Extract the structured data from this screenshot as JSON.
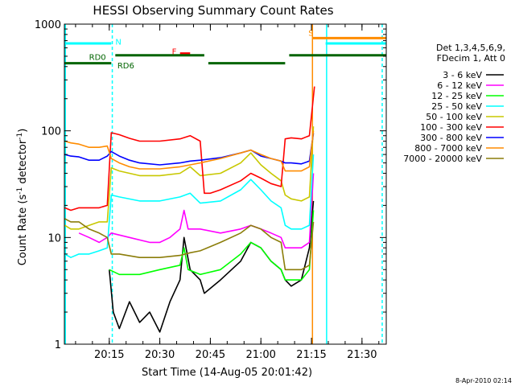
{
  "chart_data": {
    "type": "line",
    "title": "HESSI Observing Summary Count Rates",
    "xlabel": "Start Time (14-Aug-05 20:01:42)",
    "ylabel": "Count Rate (s^-1 detector^-1)",
    "ylabel_prefix": "Count Rate (s",
    "ylabel_mid": " detector",
    "ylabel_suffix": ")",
    "ylabel_sup": "-1",
    "y_scale": "log",
    "ylim": [
      1,
      1000
    ],
    "xlim": [
      20.028,
      21.62
    ],
    "x_ticks": [
      {
        "t": 20.25,
        "label": "20:15"
      },
      {
        "t": 20.5,
        "label": "20:30"
      },
      {
        "t": 20.75,
        "label": "20:45"
      },
      {
        "t": 21.0,
        "label": "21:00"
      },
      {
        "t": 21.25,
        "label": "21:15"
      },
      {
        "t": 21.5,
        "label": "21:30"
      }
    ],
    "y_ticks": [
      {
        "v": 1,
        "label": "1"
      },
      {
        "v": 10,
        "label": "10"
      },
      {
        "v": 100,
        "label": "100"
      },
      {
        "v": 1000,
        "label": "1000"
      }
    ],
    "legend_placement": "right",
    "legend_header": [
      "Det 1,3,4,5,6,9,",
      "FDecim 1, Att 0"
    ],
    "series": [
      {
        "name": "3 - 6 keV",
        "color": "#000000",
        "points": [
          [
            20.25,
            5
          ],
          [
            20.27,
            2
          ],
          [
            20.3,
            1.4
          ],
          [
            20.35,
            2.5
          ],
          [
            20.4,
            1.6
          ],
          [
            20.45,
            2
          ],
          [
            20.5,
            1.3
          ],
          [
            20.55,
            2.5
          ],
          [
            20.6,
            4
          ],
          [
            20.62,
            10
          ],
          [
            20.65,
            5
          ],
          [
            20.7,
            4
          ],
          [
            20.72,
            3
          ],
          [
            20.8,
            4
          ],
          [
            20.9,
            6
          ],
          [
            20.95,
            9
          ],
          [
            21.0,
            8
          ],
          [
            21.05,
            6
          ],
          [
            21.1,
            5
          ],
          [
            21.12,
            4
          ],
          [
            21.15,
            3.5
          ],
          [
            21.2,
            4
          ],
          [
            21.24,
            8
          ],
          [
            21.26,
            22
          ]
        ]
      },
      {
        "name": "6 - 12 keV",
        "color": "#ff00ff",
        "points": [
          [
            20.1,
            11
          ],
          [
            20.15,
            10
          ],
          [
            20.2,
            9
          ],
          [
            20.24,
            10
          ],
          [
            20.26,
            11
          ],
          [
            20.35,
            10
          ],
          [
            20.45,
            9
          ],
          [
            20.5,
            9
          ],
          [
            20.55,
            10
          ],
          [
            20.6,
            12
          ],
          [
            20.62,
            18
          ],
          [
            20.64,
            12
          ],
          [
            20.7,
            12
          ],
          [
            20.8,
            11
          ],
          [
            20.9,
            12
          ],
          [
            20.95,
            13
          ],
          [
            21.0,
            12
          ],
          [
            21.05,
            11
          ],
          [
            21.1,
            10
          ],
          [
            21.12,
            8
          ],
          [
            21.15,
            8
          ],
          [
            21.2,
            8
          ],
          [
            21.24,
            9
          ],
          [
            21.26,
            40
          ]
        ]
      },
      {
        "name": "12 - 25 keV",
        "color": "#00ff00",
        "points": [
          [
            20.25,
            5
          ],
          [
            20.3,
            4.5
          ],
          [
            20.4,
            4.5
          ],
          [
            20.5,
            5
          ],
          [
            20.6,
            5.5
          ],
          [
            20.62,
            8
          ],
          [
            20.64,
            5
          ],
          [
            20.7,
            4.5
          ],
          [
            20.8,
            5
          ],
          [
            20.9,
            7
          ],
          [
            20.95,
            9
          ],
          [
            21.0,
            8
          ],
          [
            21.05,
            6
          ],
          [
            21.1,
            5
          ],
          [
            21.12,
            4
          ],
          [
            21.15,
            4
          ],
          [
            21.2,
            4
          ],
          [
            21.24,
            5
          ],
          [
            21.26,
            18
          ]
        ]
      },
      {
        "name": "25 - 50 keV",
        "color": "#00ffff",
        "points": [
          [
            20.03,
            7
          ],
          [
            20.06,
            6.5
          ],
          [
            20.1,
            7
          ],
          [
            20.15,
            7
          ],
          [
            20.2,
            7.5
          ],
          [
            20.24,
            8
          ],
          [
            20.26,
            25
          ],
          [
            20.3,
            24
          ],
          [
            20.4,
            22
          ],
          [
            20.5,
            22
          ],
          [
            20.6,
            24
          ],
          [
            20.65,
            26
          ],
          [
            20.7,
            21
          ],
          [
            20.8,
            22
          ],
          [
            20.9,
            28
          ],
          [
            20.95,
            35
          ],
          [
            21.0,
            28
          ],
          [
            21.05,
            22
          ],
          [
            21.1,
            19
          ],
          [
            21.12,
            13
          ],
          [
            21.15,
            12
          ],
          [
            21.2,
            12
          ],
          [
            21.24,
            13
          ],
          [
            21.26,
            60
          ]
        ]
      },
      {
        "name": "50 - 100 keV",
        "color": "#c8c800",
        "points": [
          [
            20.03,
            13
          ],
          [
            20.06,
            12
          ],
          [
            20.1,
            12
          ],
          [
            20.15,
            13
          ],
          [
            20.2,
            14
          ],
          [
            20.24,
            14
          ],
          [
            20.26,
            45
          ],
          [
            20.3,
            42
          ],
          [
            20.4,
            38
          ],
          [
            20.5,
            38
          ],
          [
            20.6,
            40
          ],
          [
            20.65,
            46
          ],
          [
            20.7,
            38
          ],
          [
            20.8,
            40
          ],
          [
            20.9,
            50
          ],
          [
            20.95,
            62
          ],
          [
            21.0,
            48
          ],
          [
            21.05,
            40
          ],
          [
            21.1,
            34
          ],
          [
            21.12,
            25
          ],
          [
            21.15,
            23
          ],
          [
            21.2,
            22
          ],
          [
            21.24,
            24
          ],
          [
            21.26,
            110
          ]
        ]
      },
      {
        "name": "100 - 300 keV",
        "color": "#ff0000",
        "points": [
          [
            20.03,
            19
          ],
          [
            20.06,
            18
          ],
          [
            20.1,
            19
          ],
          [
            20.15,
            19
          ],
          [
            20.2,
            19
          ],
          [
            20.24,
            20
          ],
          [
            20.26,
            96
          ],
          [
            20.3,
            92
          ],
          [
            20.35,
            85
          ],
          [
            20.4,
            80
          ],
          [
            20.5,
            80
          ],
          [
            20.6,
            84
          ],
          [
            20.65,
            90
          ],
          [
            20.7,
            80
          ],
          [
            20.72,
            26
          ],
          [
            20.75,
            26
          ],
          [
            20.8,
            28
          ],
          [
            20.9,
            34
          ],
          [
            20.95,
            40
          ],
          [
            21.0,
            36
          ],
          [
            21.05,
            32
          ],
          [
            21.1,
            30
          ],
          [
            21.12,
            84
          ],
          [
            21.15,
            86
          ],
          [
            21.2,
            84
          ],
          [
            21.24,
            90
          ],
          [
            21.265,
            260
          ]
        ]
      },
      {
        "name": "300 - 800 keV",
        "color": "#0000ff",
        "points": [
          [
            20.03,
            60
          ],
          [
            20.06,
            58
          ],
          [
            20.1,
            57
          ],
          [
            20.15,
            53
          ],
          [
            20.2,
            53
          ],
          [
            20.24,
            58
          ],
          [
            20.26,
            64
          ],
          [
            20.3,
            58
          ],
          [
            20.35,
            53
          ],
          [
            20.4,
            50
          ],
          [
            20.5,
            48
          ],
          [
            20.6,
            50
          ],
          [
            20.65,
            52
          ],
          [
            20.7,
            53
          ],
          [
            20.8,
            56
          ],
          [
            20.9,
            62
          ],
          [
            20.95,
            66
          ],
          [
            21.0,
            58
          ],
          [
            21.05,
            55
          ],
          [
            21.1,
            52
          ],
          [
            21.12,
            50
          ],
          [
            21.15,
            50
          ],
          [
            21.2,
            49
          ],
          [
            21.24,
            52
          ],
          [
            21.26,
            95
          ]
        ]
      },
      {
        "name": "800 - 7000 keV",
        "color": "#ff8c00",
        "points": [
          [
            20.03,
            80
          ],
          [
            20.06,
            77
          ],
          [
            20.1,
            75
          ],
          [
            20.15,
            70
          ],
          [
            20.2,
            70
          ],
          [
            20.24,
            72
          ],
          [
            20.26,
            55
          ],
          [
            20.3,
            50
          ],
          [
            20.35,
            46
          ],
          [
            20.4,
            44
          ],
          [
            20.5,
            44
          ],
          [
            20.6,
            46
          ],
          [
            20.65,
            48
          ],
          [
            20.7,
            50
          ],
          [
            20.8,
            55
          ],
          [
            20.9,
            62
          ],
          [
            20.95,
            66
          ],
          [
            21.0,
            60
          ],
          [
            21.05,
            55
          ],
          [
            21.1,
            52
          ],
          [
            21.12,
            42
          ],
          [
            21.15,
            42
          ],
          [
            21.2,
            42
          ],
          [
            21.24,
            46
          ],
          [
            21.26,
            100
          ]
        ]
      },
      {
        "name": "7000 - 20000 keV",
        "color": "#8b7d0a",
        "points": [
          [
            20.03,
            15
          ],
          [
            20.06,
            14
          ],
          [
            20.1,
            14
          ],
          [
            20.15,
            12
          ],
          [
            20.2,
            11
          ],
          [
            20.24,
            10
          ],
          [
            20.26,
            7
          ],
          [
            20.3,
            7
          ],
          [
            20.4,
            6.5
          ],
          [
            20.5,
            6.5
          ],
          [
            20.6,
            6.8
          ],
          [
            20.65,
            7.2
          ],
          [
            20.7,
            7.5
          ],
          [
            20.8,
            9
          ],
          [
            20.9,
            11
          ],
          [
            20.95,
            13
          ],
          [
            21.0,
            12
          ],
          [
            21.05,
            10
          ],
          [
            21.1,
            9
          ],
          [
            21.12,
            5
          ],
          [
            21.15,
            5
          ],
          [
            21.2,
            5
          ],
          [
            21.24,
            5.5
          ],
          [
            21.26,
            14
          ]
        ]
      }
    ],
    "annotations": [
      {
        "label": "N",
        "t": 20.28,
        "v": 640,
        "color": "#00ffff"
      },
      {
        "label": "F",
        "t": 20.56,
        "v": 520,
        "color": "#ff0000"
      },
      {
        "label": "S",
        "t": 21.235,
        "v": 780,
        "color": "#ff8c00"
      },
      {
        "label": "RD0",
        "t": 20.15,
        "v": 460,
        "color": "#006400"
      },
      {
        "label": "RD6",
        "t": 20.29,
        "v": 385,
        "color": "#006400"
      }
    ],
    "bars": [
      {
        "color": "#00ffff",
        "v": 660,
        "segments": [
          [
            20.03,
            20.26
          ]
        ]
      },
      {
        "color": "#00ffff",
        "v": 660,
        "segments": [
          [
            21.32,
            21.62
          ]
        ]
      },
      {
        "color": "#ff8c00",
        "v": 740,
        "segments": [
          [
            21.255,
            21.62
          ]
        ]
      },
      {
        "color": "#ff0000",
        "v": 530,
        "segments": [
          [
            20.6,
            20.65
          ]
        ]
      },
      {
        "color": "#006400",
        "v": 510,
        "segments": [
          [
            20.28,
            20.72
          ],
          [
            21.14,
            21.62
          ]
        ]
      },
      {
        "color": "#006400",
        "v": 430,
        "segments": [
          [
            20.03,
            20.26
          ],
          [
            20.74,
            21.12
          ]
        ]
      }
    ],
    "vlines": [
      {
        "t": 20.033,
        "color": "#00ffff",
        "style": "solid"
      },
      {
        "t": 20.265,
        "color": "#00ffff",
        "style": "dashed"
      },
      {
        "t": 21.255,
        "color": "#ff8c00",
        "style": "solid"
      },
      {
        "t": 21.325,
        "color": "#00ffff",
        "style": "solid"
      },
      {
        "t": 21.6,
        "color": "#00ffff",
        "style": "dashed"
      }
    ]
  },
  "footer": {
    "date_stamp": "8-Apr-2010 02:14"
  }
}
